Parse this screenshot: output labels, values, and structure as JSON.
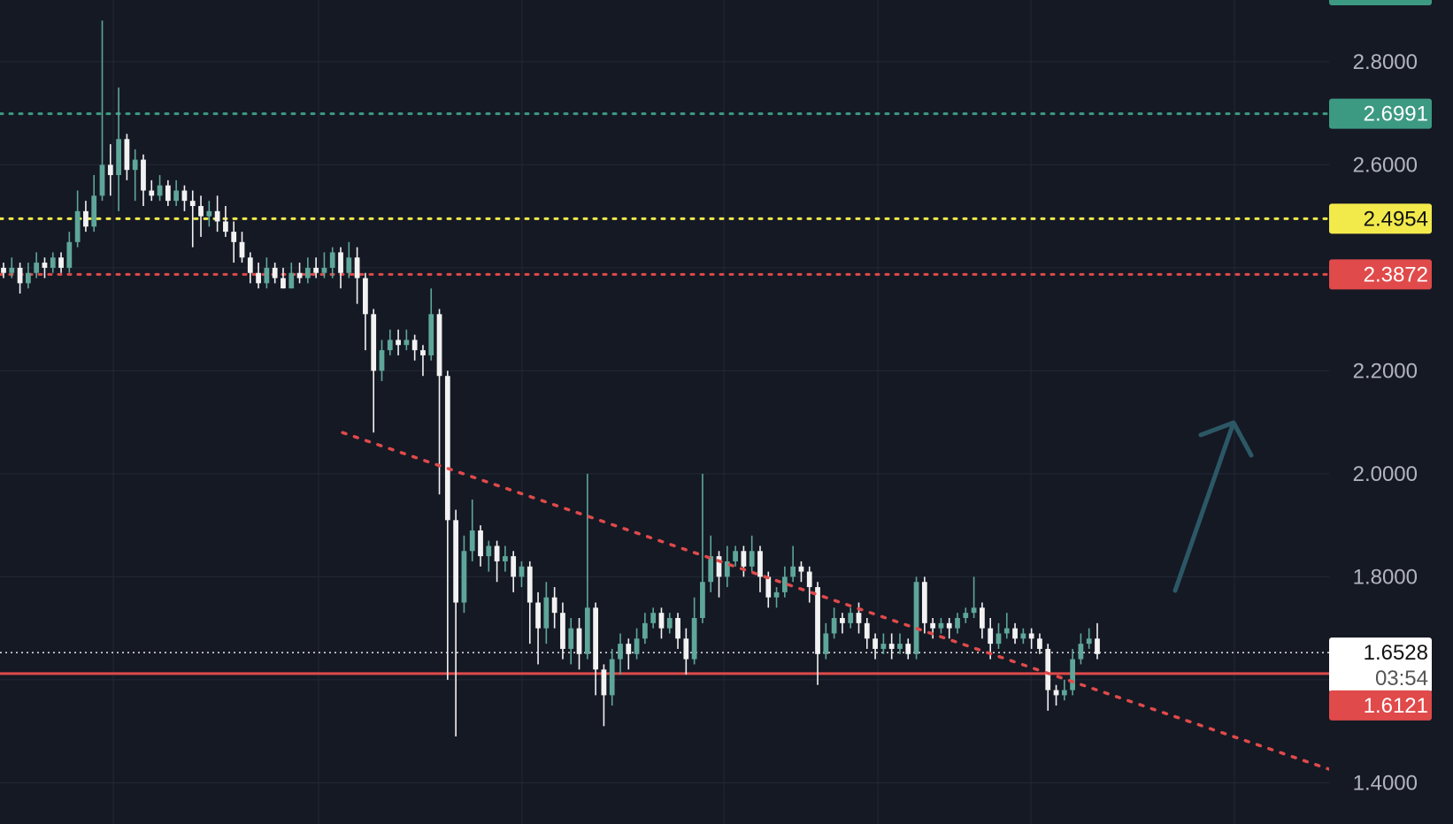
{
  "chart_data": {
    "type": "candlestick",
    "title": "",
    "ylim": [
      1.32,
      2.92
    ],
    "y_ticks": [
      "1.4000",
      "1.8000",
      "2.0000",
      "2.2000",
      "2.6000",
      "2.8000"
    ],
    "grid": true,
    "colors": {
      "background": "#151924",
      "grid": "#232837",
      "up": "#5ea699",
      "down": "#f2f2f2",
      "arrow": "#2c5866"
    },
    "levels": [
      {
        "name": "resistance-2.6991",
        "label": "2.6991",
        "value": 2.6991,
        "style": "dotted",
        "color": "#3d9a82",
        "tag_bg": "#3d9a82",
        "tag_text": "#ffffff"
      },
      {
        "name": "level-2.4954",
        "label": "2.4954",
        "value": 2.4954,
        "style": "dotted",
        "color": "#f2ea4b",
        "tag_bg": "#f2ea4b",
        "tag_text": "#111111"
      },
      {
        "name": "level-2.3872",
        "label": "2.3872",
        "value": 2.3872,
        "style": "dotted",
        "color": "#e04a4a",
        "tag_bg": "#e04a4a",
        "tag_text": "#ffffff"
      },
      {
        "name": "support-1.6121",
        "label": "1.6121",
        "value": 1.6121,
        "style": "solid",
        "color": "#e04a4a",
        "tag_bg": "#e04a4a",
        "tag_text": "#ffffff"
      }
    ],
    "last_price": {
      "label": "1.6528",
      "value": 1.6528,
      "countdown": "03:54"
    },
    "trendline": {
      "color": "#e04a4a",
      "from": {
        "bar": 0.31,
        "price": 2.08
      },
      "to": {
        "bar": 1.0,
        "price": 1.58
      }
    },
    "candles": [
      [
        2.4,
        2.39,
        2.41,
        2.38
      ],
      [
        2.39,
        2.4,
        2.42,
        2.38
      ],
      [
        2.4,
        2.37,
        2.41,
        2.35
      ],
      [
        2.37,
        2.39,
        2.41,
        2.36
      ],
      [
        2.39,
        2.41,
        2.43,
        2.38
      ],
      [
        2.41,
        2.4,
        2.42,
        2.38
      ],
      [
        2.4,
        2.42,
        2.43,
        2.39
      ],
      [
        2.42,
        2.4,
        2.43,
        2.39
      ],
      [
        2.4,
        2.45,
        2.47,
        2.39
      ],
      [
        2.45,
        2.51,
        2.55,
        2.44
      ],
      [
        2.51,
        2.48,
        2.53,
        2.47
      ],
      [
        2.48,
        2.54,
        2.58,
        2.47
      ],
      [
        2.54,
        2.6,
        2.88,
        2.53
      ],
      [
        2.6,
        2.58,
        2.64,
        2.54
      ],
      [
        2.58,
        2.65,
        2.75,
        2.51
      ],
      [
        2.65,
        2.59,
        2.66,
        2.57
      ],
      [
        2.59,
        2.61,
        2.63,
        2.53
      ],
      [
        2.61,
        2.55,
        2.62,
        2.52
      ],
      [
        2.55,
        2.54,
        2.57,
        2.53
      ],
      [
        2.54,
        2.56,
        2.58,
        2.53
      ],
      [
        2.56,
        2.53,
        2.57,
        2.52
      ],
      [
        2.53,
        2.55,
        2.57,
        2.52
      ],
      [
        2.55,
        2.53,
        2.56,
        2.51
      ],
      [
        2.53,
        2.52,
        2.55,
        2.44
      ],
      [
        2.52,
        2.5,
        2.54,
        2.46
      ],
      [
        2.5,
        2.51,
        2.53,
        2.48
      ],
      [
        2.51,
        2.49,
        2.54,
        2.47
      ],
      [
        2.49,
        2.47,
        2.52,
        2.46
      ],
      [
        2.47,
        2.45,
        2.49,
        2.41
      ],
      [
        2.45,
        2.42,
        2.47,
        2.41
      ],
      [
        2.42,
        2.39,
        2.43,
        2.37
      ],
      [
        2.39,
        2.37,
        2.41,
        2.36
      ],
      [
        2.37,
        2.4,
        2.42,
        2.36
      ],
      [
        2.4,
        2.38,
        2.41,
        2.37
      ],
      [
        2.38,
        2.36,
        2.4,
        2.36
      ],
      [
        2.36,
        2.39,
        2.41,
        2.36
      ],
      [
        2.39,
        2.38,
        2.41,
        2.37
      ],
      [
        2.38,
        2.4,
        2.42,
        2.37
      ],
      [
        2.4,
        2.39,
        2.42,
        2.38
      ],
      [
        2.39,
        2.4,
        2.43,
        2.38
      ],
      [
        2.4,
        2.43,
        2.44,
        2.38
      ],
      [
        2.43,
        2.39,
        2.44,
        2.36
      ],
      [
        2.39,
        2.42,
        2.45,
        2.38
      ],
      [
        2.42,
        2.38,
        2.44,
        2.33
      ],
      [
        2.38,
        2.31,
        2.39,
        2.24
      ],
      [
        2.31,
        2.2,
        2.32,
        2.08
      ],
      [
        2.2,
        2.24,
        2.26,
        2.18
      ],
      [
        2.24,
        2.26,
        2.28,
        2.23
      ],
      [
        2.26,
        2.25,
        2.28,
        2.23
      ],
      [
        2.25,
        2.26,
        2.28,
        2.24
      ],
      [
        2.26,
        2.24,
        2.27,
        2.22
      ],
      [
        2.24,
        2.23,
        2.25,
        2.19
      ],
      [
        2.23,
        2.31,
        2.36,
        2.22
      ],
      [
        2.31,
        2.19,
        2.32,
        1.96
      ],
      [
        2.19,
        1.91,
        2.2,
        1.6
      ],
      [
        1.91,
        1.75,
        1.93,
        1.49
      ],
      [
        1.75,
        1.85,
        1.88,
        1.73
      ],
      [
        1.85,
        1.89,
        1.95,
        1.83
      ],
      [
        1.89,
        1.84,
        1.9,
        1.82
      ],
      [
        1.84,
        1.86,
        1.87,
        1.81
      ],
      [
        1.86,
        1.83,
        1.87,
        1.79
      ],
      [
        1.83,
        1.84,
        1.86,
        1.81
      ],
      [
        1.84,
        1.8,
        1.85,
        1.77
      ],
      [
        1.8,
        1.82,
        1.83,
        1.78
      ],
      [
        1.82,
        1.75,
        1.83,
        1.67
      ],
      [
        1.75,
        1.7,
        1.77,
        1.63
      ],
      [
        1.7,
        1.76,
        1.79,
        1.67
      ],
      [
        1.76,
        1.73,
        1.78,
        1.7
      ],
      [
        1.73,
        1.66,
        1.75,
        1.64
      ],
      [
        1.66,
        1.7,
        1.72,
        1.63
      ],
      [
        1.7,
        1.65,
        1.72,
        1.62
      ],
      [
        1.65,
        1.74,
        2.0,
        1.64
      ],
      [
        1.74,
        1.62,
        1.75,
        1.57
      ],
      [
        1.62,
        1.57,
        1.63,
        1.51
      ],
      [
        1.57,
        1.64,
        1.66,
        1.55
      ],
      [
        1.64,
        1.67,
        1.69,
        1.61
      ],
      [
        1.67,
        1.65,
        1.68,
        1.62
      ],
      [
        1.65,
        1.68,
        1.7,
        1.64
      ],
      [
        1.68,
        1.71,
        1.73,
        1.67
      ],
      [
        1.71,
        1.73,
        1.74,
        1.7
      ],
      [
        1.73,
        1.7,
        1.74,
        1.68
      ],
      [
        1.7,
        1.72,
        1.73,
        1.69
      ],
      [
        1.72,
        1.68,
        1.73,
        1.66
      ],
      [
        1.68,
        1.64,
        1.7,
        1.61
      ],
      [
        1.64,
        1.72,
        1.76,
        1.63
      ],
      [
        1.72,
        1.79,
        2.0,
        1.71
      ],
      [
        1.79,
        1.84,
        1.88,
        1.77
      ],
      [
        1.84,
        1.8,
        1.85,
        1.76
      ],
      [
        1.8,
        1.83,
        1.86,
        1.78
      ],
      [
        1.83,
        1.85,
        1.86,
        1.82
      ],
      [
        1.85,
        1.82,
        1.86,
        1.8
      ],
      [
        1.82,
        1.85,
        1.88,
        1.81
      ],
      [
        1.85,
        1.8,
        1.86,
        1.77
      ],
      [
        1.8,
        1.76,
        1.81,
        1.74
      ],
      [
        1.76,
        1.77,
        1.78,
        1.74
      ],
      [
        1.77,
        1.8,
        1.82,
        1.76
      ],
      [
        1.8,
        1.82,
        1.86,
        1.79
      ],
      [
        1.82,
        1.81,
        1.83,
        1.79
      ],
      [
        1.81,
        1.78,
        1.82,
        1.75
      ],
      [
        1.78,
        1.65,
        1.79,
        1.59
      ],
      [
        1.65,
        1.69,
        1.71,
        1.64
      ],
      [
        1.69,
        1.72,
        1.74,
        1.68
      ],
      [
        1.72,
        1.71,
        1.73,
        1.69
      ],
      [
        1.71,
        1.73,
        1.74,
        1.7
      ],
      [
        1.73,
        1.71,
        1.75,
        1.69
      ],
      [
        1.71,
        1.68,
        1.72,
        1.66
      ],
      [
        1.68,
        1.66,
        1.69,
        1.64
      ],
      [
        1.66,
        1.67,
        1.69,
        1.65
      ],
      [
        1.67,
        1.66,
        1.69,
        1.64
      ],
      [
        1.66,
        1.67,
        1.69,
        1.65
      ],
      [
        1.67,
        1.65,
        1.68,
        1.64
      ],
      [
        1.65,
        1.79,
        1.8,
        1.64
      ],
      [
        1.79,
        1.71,
        1.8,
        1.69
      ],
      [
        1.71,
        1.7,
        1.72,
        1.68
      ],
      [
        1.7,
        1.71,
        1.72,
        1.69
      ],
      [
        1.71,
        1.7,
        1.72,
        1.68
      ],
      [
        1.7,
        1.72,
        1.73,
        1.69
      ],
      [
        1.72,
        1.73,
        1.74,
        1.71
      ],
      [
        1.73,
        1.74,
        1.8,
        1.72
      ],
      [
        1.74,
        1.7,
        1.75,
        1.68
      ],
      [
        1.7,
        1.67,
        1.72,
        1.64
      ],
      [
        1.67,
        1.69,
        1.71,
        1.66
      ],
      [
        1.69,
        1.7,
        1.73,
        1.68
      ],
      [
        1.7,
        1.68,
        1.71,
        1.67
      ],
      [
        1.68,
        1.69,
        1.7,
        1.67
      ],
      [
        1.69,
        1.68,
        1.7,
        1.66
      ],
      [
        1.68,
        1.66,
        1.69,
        1.65
      ],
      [
        1.66,
        1.58,
        1.67,
        1.54
      ],
      [
        1.58,
        1.57,
        1.59,
        1.55
      ],
      [
        1.57,
        1.58,
        1.6,
        1.56
      ],
      [
        1.58,
        1.64,
        1.66,
        1.57
      ],
      [
        1.64,
        1.67,
        1.69,
        1.63
      ],
      [
        1.67,
        1.68,
        1.7,
        1.66
      ],
      [
        1.68,
        1.65,
        1.71,
        1.64
      ]
    ]
  }
}
